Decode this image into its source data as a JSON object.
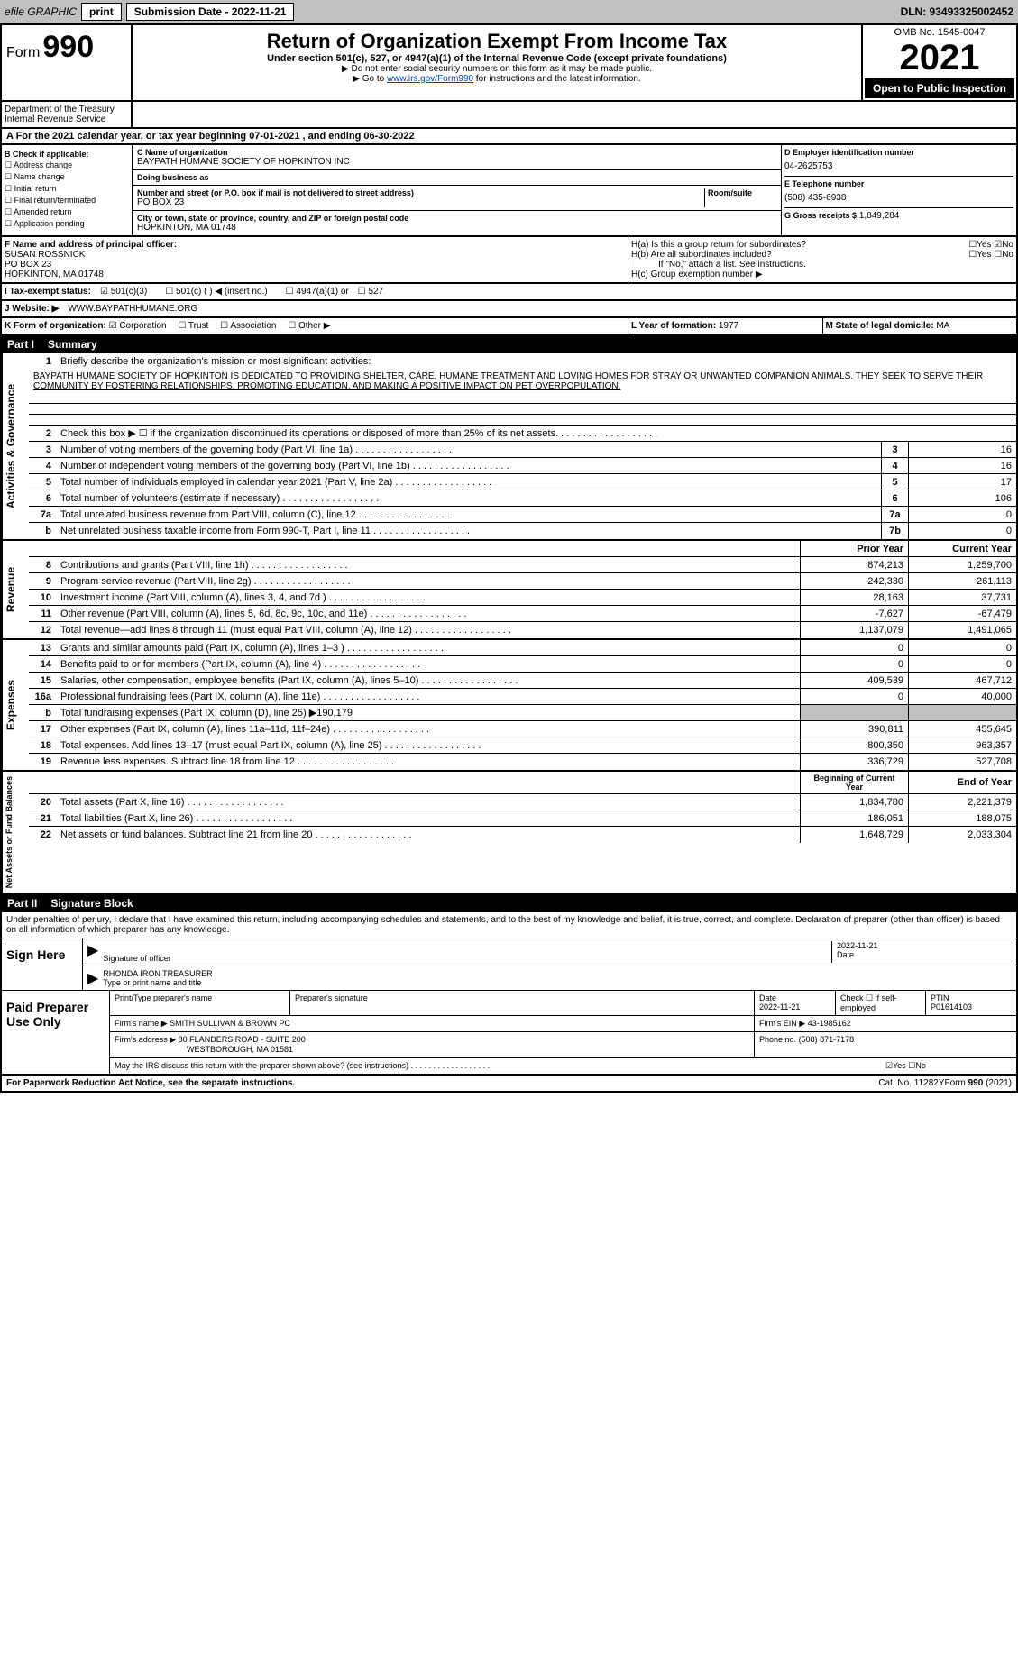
{
  "topbar": {
    "efile": "efile GRAPHIC",
    "print": "print",
    "submission": "Submission Date - 2022-11-21",
    "dln": "DLN: 93493325002452"
  },
  "header": {
    "form_label": "Form",
    "form_num": "990",
    "title": "Return of Organization Exempt From Income Tax",
    "subtitle": "Under section 501(c), 527, or 4947(a)(1) of the Internal Revenue Code (except private foundations)",
    "note1": "▶ Do not enter social security numbers on this form as it may be made public.",
    "note2": "▶ Go to www.irs.gov/Form990 for instructions and the latest information.",
    "omb": "OMB No. 1545-0047",
    "year": "2021",
    "open": "Open to Public Inspection",
    "dept": "Department of the Treasury Internal Revenue Service"
  },
  "period": "A For the 2021 calendar year, or tax year beginning 07-01-2021    , and ending 06-30-2022",
  "section_b": {
    "label": "B Check if applicable:",
    "items": [
      "Address change",
      "Name change",
      "Initial return",
      "Final return/terminated",
      "Amended return",
      "Application pending"
    ]
  },
  "section_c": {
    "name_label": "C Name of organization",
    "name": "BAYPATH HUMANE SOCIETY OF HOPKINTON INC",
    "dba_label": "Doing business as",
    "dba": "",
    "addr_label": "Number and street (or P.O. box if mail is not delivered to street address)",
    "room_label": "Room/suite",
    "addr": "PO BOX 23",
    "city_label": "City or town, state or province, country, and ZIP or foreign postal code",
    "city": "HOPKINTON, MA  01748"
  },
  "section_d": {
    "label": "D Employer identification number",
    "ein": "04-2625753",
    "phone_label": "E Telephone number",
    "phone": "(508) 435-6938",
    "receipts_label": "G Gross receipts $",
    "receipts": "1,849,284"
  },
  "section_f": {
    "label": "F Name and address of principal officer:",
    "name": "SUSAN ROSSNICK",
    "addr1": "PO BOX 23",
    "addr2": "HOPKINTON, MA  01748"
  },
  "section_h": {
    "ha": "H(a)  Is this a group return for subordinates?",
    "hb": "H(b)  Are all subordinates included?",
    "hb_note": "If \"No,\" attach a list. See instructions.",
    "hc": "H(c)  Group exemption number ▶"
  },
  "section_i": {
    "label": "I  Tax-exempt status:",
    "opts": [
      "501(c)(3)",
      "501(c) (  ) ◀ (insert no.)",
      "4947(a)(1) or",
      "527"
    ]
  },
  "section_j": {
    "label": "J  Website: ▶",
    "url": "WWW.BAYPATHHUMANE.ORG"
  },
  "section_k": {
    "label": "K Form of organization:",
    "opts": [
      "Corporation",
      "Trust",
      "Association",
      "Other ▶"
    ],
    "year_label": "L Year of formation:",
    "year": "1977",
    "state_label": "M State of legal domicile:",
    "state": "MA"
  },
  "part1": {
    "header": "Part I",
    "title": "Summary"
  },
  "mission": {
    "num": "1",
    "label": "Briefly describe the organization's mission or most significant activities:",
    "text": "BAYPATH HUMANE SOCIETY OF HOPKINTON IS DEDICATED TO PROVIDING SHELTER, CARE, HUMANE TREATMENT AND LOVING HOMES FOR STRAY OR UNWANTED COMPANION ANIMALS. THEY SEEK TO SERVE THEIR COMMUNITY BY FOSTERING RELATIONSHIPS, PROMOTING EDUCATION, AND MAKING A POSITIVE IMPACT ON PET OVERPOPULATION."
  },
  "gov_rows": [
    {
      "num": "2",
      "label": "Check this box ▶ ☐  if the organization discontinued its operations or disposed of more than 25% of its net assets.",
      "box": "",
      "val": ""
    },
    {
      "num": "3",
      "label": "Number of voting members of the governing body (Part VI, line 1a)",
      "box": "3",
      "val": "16"
    },
    {
      "num": "4",
      "label": "Number of independent voting members of the governing body (Part VI, line 1b)",
      "box": "4",
      "val": "16"
    },
    {
      "num": "5",
      "label": "Total number of individuals employed in calendar year 2021 (Part V, line 2a)",
      "box": "5",
      "val": "17"
    },
    {
      "num": "6",
      "label": "Total number of volunteers (estimate if necessary)",
      "box": "6",
      "val": "106"
    },
    {
      "num": "7a",
      "label": "Total unrelated business revenue from Part VIII, column (C), line 12",
      "box": "7a",
      "val": "0"
    },
    {
      "num": "b",
      "label": "Net unrelated business taxable income from Form 990-T, Part I, line 11",
      "box": "7b",
      "val": "0"
    }
  ],
  "col_headers": {
    "prior": "Prior Year",
    "current": "Current Year"
  },
  "revenue_rows": [
    {
      "num": "8",
      "label": "Contributions and grants (Part VIII, line 1h)",
      "prior": "874,213",
      "current": "1,259,700"
    },
    {
      "num": "9",
      "label": "Program service revenue (Part VIII, line 2g)",
      "prior": "242,330",
      "current": "261,113"
    },
    {
      "num": "10",
      "label": "Investment income (Part VIII, column (A), lines 3, 4, and 7d )",
      "prior": "28,163",
      "current": "37,731"
    },
    {
      "num": "11",
      "label": "Other revenue (Part VIII, column (A), lines 5, 6d, 8c, 9c, 10c, and 11e)",
      "prior": "-7,627",
      "current": "-67,479"
    },
    {
      "num": "12",
      "label": "Total revenue—add lines 8 through 11 (must equal Part VIII, column (A), line 12)",
      "prior": "1,137,079",
      "current": "1,491,065"
    }
  ],
  "expense_rows": [
    {
      "num": "13",
      "label": "Grants and similar amounts paid (Part IX, column (A), lines 1–3 )",
      "prior": "0",
      "current": "0"
    },
    {
      "num": "14",
      "label": "Benefits paid to or for members (Part IX, column (A), line 4)",
      "prior": "0",
      "current": "0"
    },
    {
      "num": "15",
      "label": "Salaries, other compensation, employee benefits (Part IX, column (A), lines 5–10)",
      "prior": "409,539",
      "current": "467,712"
    },
    {
      "num": "16a",
      "label": "Professional fundraising fees (Part IX, column (A), line 11e)",
      "prior": "0",
      "current": "40,000"
    },
    {
      "num": "b",
      "label": "Total fundraising expenses (Part IX, column (D), line 25) ▶190,179",
      "prior": "",
      "current": ""
    },
    {
      "num": "17",
      "label": "Other expenses (Part IX, column (A), lines 11a–11d, 11f–24e)",
      "prior": "390,811",
      "current": "455,645"
    },
    {
      "num": "18",
      "label": "Total expenses. Add lines 13–17 (must equal Part IX, column (A), line 25)",
      "prior": "800,350",
      "current": "963,357"
    },
    {
      "num": "19",
      "label": "Revenue less expenses. Subtract line 18 from line 12",
      "prior": "336,729",
      "current": "527,708"
    }
  ],
  "net_headers": {
    "begin": "Beginning of Current Year",
    "end": "End of Year"
  },
  "net_rows": [
    {
      "num": "20",
      "label": "Total assets (Part X, line 16)",
      "prior": "1,834,780",
      "current": "2,221,379"
    },
    {
      "num": "21",
      "label": "Total liabilities (Part X, line 26)",
      "prior": "186,051",
      "current": "188,075"
    },
    {
      "num": "22",
      "label": "Net assets or fund balances. Subtract line 21 from line 20",
      "prior": "1,648,729",
      "current": "2,033,304"
    }
  ],
  "part2": {
    "header": "Part II",
    "title": "Signature Block"
  },
  "sig": {
    "declaration": "Under penalties of perjury, I declare that I have examined this return, including accompanying schedules and statements, and to the best of my knowledge and belief, it is true, correct, and complete. Declaration of preparer (other than officer) is based on all information of which preparer has any knowledge.",
    "sign_here": "Sign Here",
    "sig_label": "Signature of officer",
    "date_label": "Date",
    "date": "2022-11-21",
    "name": "RHONDA IRON  TREASURER",
    "name_label": "Type or print name and title"
  },
  "preparer": {
    "label": "Paid Preparer Use Only",
    "name_label": "Print/Type preparer's name",
    "sig_label": "Preparer's signature",
    "date_label": "Date",
    "date": "2022-11-21",
    "check_label": "Check ☐ if self-employed",
    "ptin_label": "PTIN",
    "ptin": "P01614103",
    "firm_name_label": "Firm's name    ▶",
    "firm_name": "SMITH SULLIVAN & BROWN PC",
    "firm_ein_label": "Firm's EIN ▶",
    "firm_ein": "43-1985162",
    "firm_addr_label": "Firm's address ▶",
    "firm_addr1": "80 FLANDERS ROAD - SUITE 200",
    "firm_addr2": "WESTBOROUGH, MA  01581",
    "phone_label": "Phone no.",
    "phone": "(508) 871-7178",
    "discuss": "May the IRS discuss this return with the preparer shown above? (see instructions)"
  },
  "footer": {
    "left": "For Paperwork Reduction Act Notice, see the separate instructions.",
    "mid": "Cat. No. 11282Y",
    "right": "Form 990 (2021)"
  },
  "side_labels": {
    "gov": "Activities & Governance",
    "rev": "Revenue",
    "exp": "Expenses",
    "net": "Net Assets or Fund Balances"
  }
}
